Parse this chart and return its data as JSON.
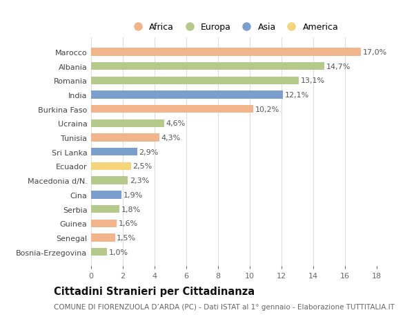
{
  "countries": [
    "Marocco",
    "Albania",
    "Romania",
    "India",
    "Burkina Faso",
    "Ucraina",
    "Tunisia",
    "Sri Lanka",
    "Ecuador",
    "Macedonia d/N.",
    "Cina",
    "Serbia",
    "Guinea",
    "Senegal",
    "Bosnia-Erzegovina"
  ],
  "values": [
    17.0,
    14.7,
    13.1,
    12.1,
    10.2,
    4.6,
    4.3,
    2.9,
    2.5,
    2.3,
    1.9,
    1.8,
    1.6,
    1.5,
    1.0
  ],
  "continents": [
    "Africa",
    "Europa",
    "Europa",
    "Asia",
    "Africa",
    "Europa",
    "Africa",
    "Asia",
    "America",
    "Europa",
    "Asia",
    "Europa",
    "Africa",
    "Africa",
    "Europa"
  ],
  "colors": {
    "Africa": "#F2B48A",
    "Europa": "#B5C98A",
    "Asia": "#7B9FCC",
    "America": "#F5D47A"
  },
  "legend_order": [
    "Africa",
    "Europa",
    "Asia",
    "America"
  ],
  "title": "Cittadini Stranieri per Cittadinanza",
  "subtitle": "COMUNE DI FIORENZUOLA D’ARDA (PC) - Dati ISTAT al 1° gennaio - Elaborazione TUTTITALIA.IT",
  "xlim": [
    0,
    18
  ],
  "xticks": [
    0,
    2,
    4,
    6,
    8,
    10,
    12,
    14,
    16,
    18
  ],
  "background_color": "#ffffff",
  "grid_color": "#dddddd",
  "bar_height": 0.55,
  "label_fontsize": 8.0,
  "tick_fontsize": 8.0,
  "legend_fontsize": 9.0,
  "title_fontsize": 10.5,
  "subtitle_fontsize": 7.5
}
